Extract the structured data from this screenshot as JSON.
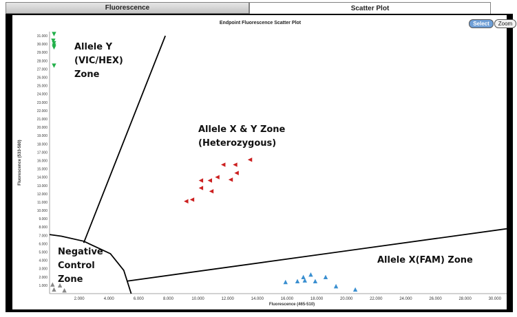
{
  "tabs": [
    {
      "label": "Fluorescence",
      "active": false
    },
    {
      "label": "Scatter Plot",
      "active": true
    }
  ],
  "plot": {
    "title": "Endpoint Fluorescence Scatter Plot",
    "select_label": "Select",
    "zoom_label": "Zoom"
  },
  "chart_data": {
    "type": "scatter",
    "title": "Endpoint Fluorescence Scatter Plot",
    "xlabel": "Fluorescence (465-510)",
    "ylabel": "Fluorescence (533-580)",
    "xlim": [
      0,
      30800
    ],
    "ylim": [
      0,
      31500
    ],
    "grid": false,
    "x_ticks": [
      "2.000",
      "4.000",
      "6.000",
      "8.000",
      "10.000",
      "12.000",
      "14.000",
      "16.000",
      "18.000",
      "20.000",
      "22.000",
      "24.000",
      "26.000",
      "28.000",
      "30.000"
    ],
    "y_ticks": [
      "1.000",
      "2.000",
      "3.000",
      "4.000",
      "5.000",
      "6.000",
      "7.000",
      "8.000",
      "9.000",
      "10.000",
      "11.000",
      "12.000",
      "13.000",
      "14.000",
      "15.000",
      "16.000",
      "17.000",
      "18.000",
      "19.000",
      "20.000",
      "21.000",
      "22.000",
      "23.000",
      "24.000",
      "25.000",
      "26.000",
      "27.000",
      "28.000",
      "29.000",
      "30.000",
      "31.000"
    ],
    "zone_labels": [
      {
        "lines": [
          "Allele Y",
          "(VIC/HEX)",
          "Zone"
        ]
      },
      {
        "lines": [
          "Allele X & Y Zone",
          "(Heterozygous)"
        ]
      },
      {
        "lines": [
          "Allele X(FAM) Zone"
        ]
      },
      {
        "lines": [
          "Negative",
          "Control",
          "Zone"
        ]
      }
    ],
    "series": [
      {
        "color": "#22b04a",
        "marker": "triangle-down",
        "points": [
          [
            300,
            31200
          ],
          [
            250,
            30400
          ],
          [
            300,
            30100
          ],
          [
            300,
            29800
          ],
          [
            300,
            29600
          ],
          [
            300,
            27400
          ]
        ]
      },
      {
        "color": "#cc2020",
        "marker": "triangle-left",
        "points": [
          [
            13500,
            16100
          ],
          [
            12500,
            15500
          ],
          [
            11700,
            15500
          ],
          [
            12600,
            14500
          ],
          [
            12200,
            13700
          ],
          [
            11300,
            14000
          ],
          [
            10800,
            13600
          ],
          [
            10200,
            13600
          ],
          [
            10200,
            12700
          ],
          [
            10900,
            12300
          ],
          [
            9600,
            11300
          ],
          [
            9200,
            11100
          ]
        ]
      },
      {
        "color": "#3a8fd0",
        "marker": "triangle-up",
        "points": [
          [
            15900,
            1400
          ],
          [
            16700,
            1500
          ],
          [
            17100,
            2000
          ],
          [
            17600,
            2300
          ],
          [
            17200,
            1600
          ],
          [
            17900,
            1500
          ],
          [
            18600,
            2000
          ],
          [
            19300,
            900
          ],
          [
            20600,
            500
          ]
        ]
      },
      {
        "color": "#888888",
        "marker": "triangle-up",
        "points": [
          [
            200,
            1100
          ],
          [
            700,
            1000
          ],
          [
            300,
            500
          ],
          [
            1000,
            400
          ]
        ]
      }
    ],
    "zone_lines": [
      {
        "points": [
          [
            2300,
            6100
          ],
          [
            7800,
            31000
          ]
        ]
      },
      {
        "points": [
          [
            5200,
            1500
          ],
          [
            30800,
            7800
          ]
        ]
      },
      {
        "points": [
          [
            0,
            7100
          ],
          [
            800,
            6900
          ],
          [
            2300,
            6300
          ],
          [
            4100,
            4800
          ],
          [
            5000,
            2800
          ],
          [
            5500,
            0
          ]
        ]
      }
    ]
  }
}
